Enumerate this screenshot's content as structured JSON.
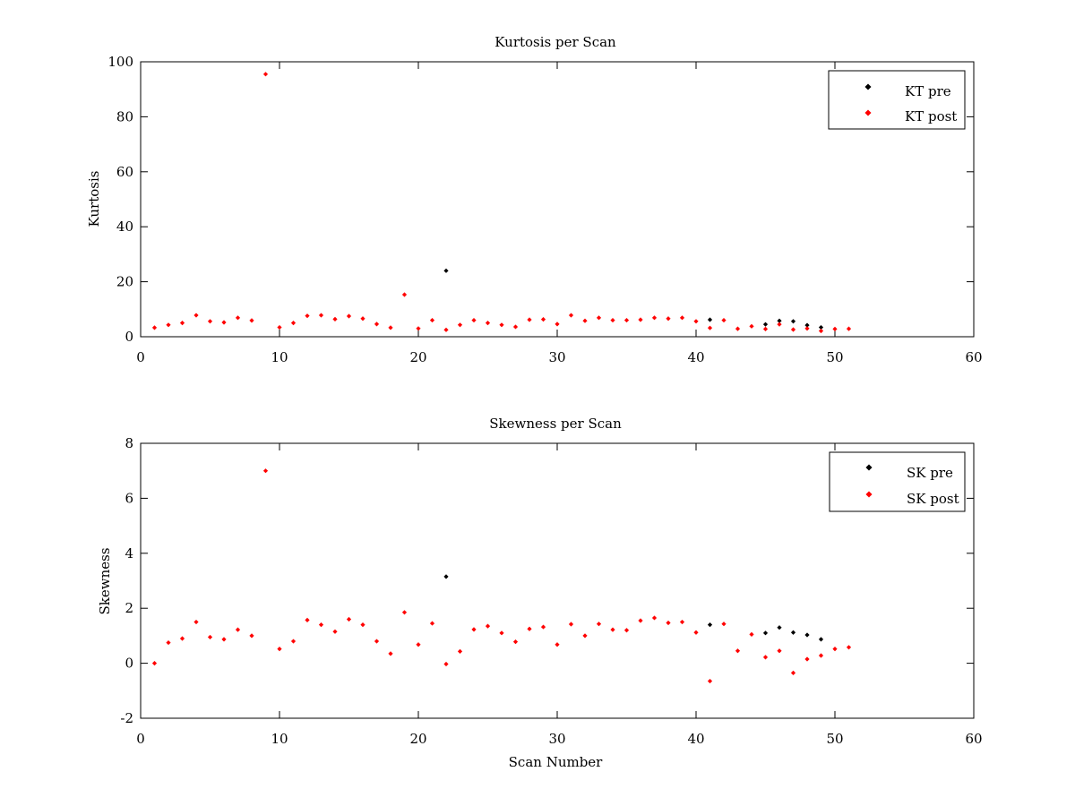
{
  "chart_data": [
    {
      "type": "scatter",
      "title": "Kurtosis per Scan",
      "xlabel": "",
      "ylabel": "Kurtosis",
      "xlim": [
        0,
        60
      ],
      "ylim": [
        0,
        100
      ],
      "xticks": [
        0,
        10,
        20,
        30,
        40,
        50,
        60
      ],
      "yticks": [
        0,
        20,
        40,
        60,
        80,
        100
      ],
      "grid": false,
      "legend_position": "top-right",
      "series": [
        {
          "name": "KT pre",
          "color": "#000000",
          "x": [
            22,
            41,
            45,
            46,
            47,
            48,
            49
          ],
          "y": [
            24.0,
            6.2,
            4.5,
            5.8,
            5.6,
            4.2,
            3.4
          ]
        },
        {
          "name": "KT post",
          "color": "#ff0000",
          "x": [
            1,
            2,
            3,
            4,
            5,
            6,
            7,
            8,
            9,
            10,
            11,
            12,
            13,
            14,
            15,
            16,
            17,
            18,
            19,
            20,
            21,
            22,
            23,
            24,
            25,
            26,
            27,
            28,
            29,
            30,
            31,
            32,
            33,
            34,
            35,
            36,
            37,
            38,
            39,
            40,
            41,
            42,
            43,
            44,
            45,
            46,
            47,
            48,
            49,
            50,
            51
          ],
          "y": [
            3.3,
            4.3,
            5.0,
            7.8,
            5.6,
            5.2,
            6.9,
            5.9,
            95.5,
            3.4,
            5.0,
            7.6,
            7.8,
            6.4,
            7.5,
            6.6,
            4.6,
            3.3,
            15.3,
            3.0,
            6.0,
            2.5,
            4.3,
            6.0,
            5.0,
            4.3,
            3.6,
            6.2,
            6.3,
            4.6,
            7.8,
            5.8,
            6.9,
            6.0,
            6.0,
            6.2,
            6.9,
            6.6,
            6.9,
            5.6,
            3.2,
            6.0,
            2.9,
            3.8,
            2.8,
            4.5,
            2.6,
            3.0,
            2.1,
            2.8,
            2.9
          ]
        }
      ]
    },
    {
      "type": "scatter",
      "title": "Skewness per Scan",
      "xlabel": "Scan Number",
      "ylabel": "Skewness",
      "xlim": [
        0,
        60
      ],
      "ylim": [
        -2,
        8
      ],
      "xticks": [
        0,
        10,
        20,
        30,
        40,
        50,
        60
      ],
      "yticks": [
        -2,
        0,
        2,
        4,
        6,
        8
      ],
      "grid": false,
      "legend_position": "top-right",
      "series": [
        {
          "name": "SK pre",
          "color": "#000000",
          "x": [
            22,
            41,
            45,
            46,
            47,
            48,
            49
          ],
          "y": [
            3.15,
            1.4,
            1.1,
            1.3,
            1.12,
            1.03,
            0.87
          ]
        },
        {
          "name": "SK post",
          "color": "#ff0000",
          "x": [
            1,
            2,
            3,
            4,
            5,
            6,
            7,
            8,
            9,
            10,
            11,
            12,
            13,
            14,
            15,
            16,
            17,
            18,
            19,
            20,
            21,
            22,
            23,
            24,
            25,
            26,
            27,
            28,
            29,
            30,
            31,
            32,
            33,
            34,
            35,
            36,
            37,
            38,
            39,
            40,
            41,
            42,
            43,
            44,
            45,
            46,
            47,
            48,
            49,
            50,
            51
          ],
          "y": [
            0.0,
            0.75,
            0.9,
            1.5,
            0.95,
            0.87,
            1.22,
            1.0,
            7.0,
            0.52,
            0.8,
            1.57,
            1.4,
            1.15,
            1.6,
            1.4,
            0.8,
            0.35,
            1.85,
            0.68,
            1.45,
            -0.03,
            0.43,
            1.23,
            1.35,
            1.1,
            0.78,
            1.25,
            1.32,
            0.68,
            1.42,
            1.0,
            1.43,
            1.22,
            1.2,
            1.55,
            1.65,
            1.47,
            1.5,
            1.12,
            -0.65,
            1.43,
            0.45,
            1.05,
            0.22,
            0.45,
            -0.35,
            0.15,
            0.28,
            0.52,
            0.58
          ]
        }
      ]
    }
  ]
}
